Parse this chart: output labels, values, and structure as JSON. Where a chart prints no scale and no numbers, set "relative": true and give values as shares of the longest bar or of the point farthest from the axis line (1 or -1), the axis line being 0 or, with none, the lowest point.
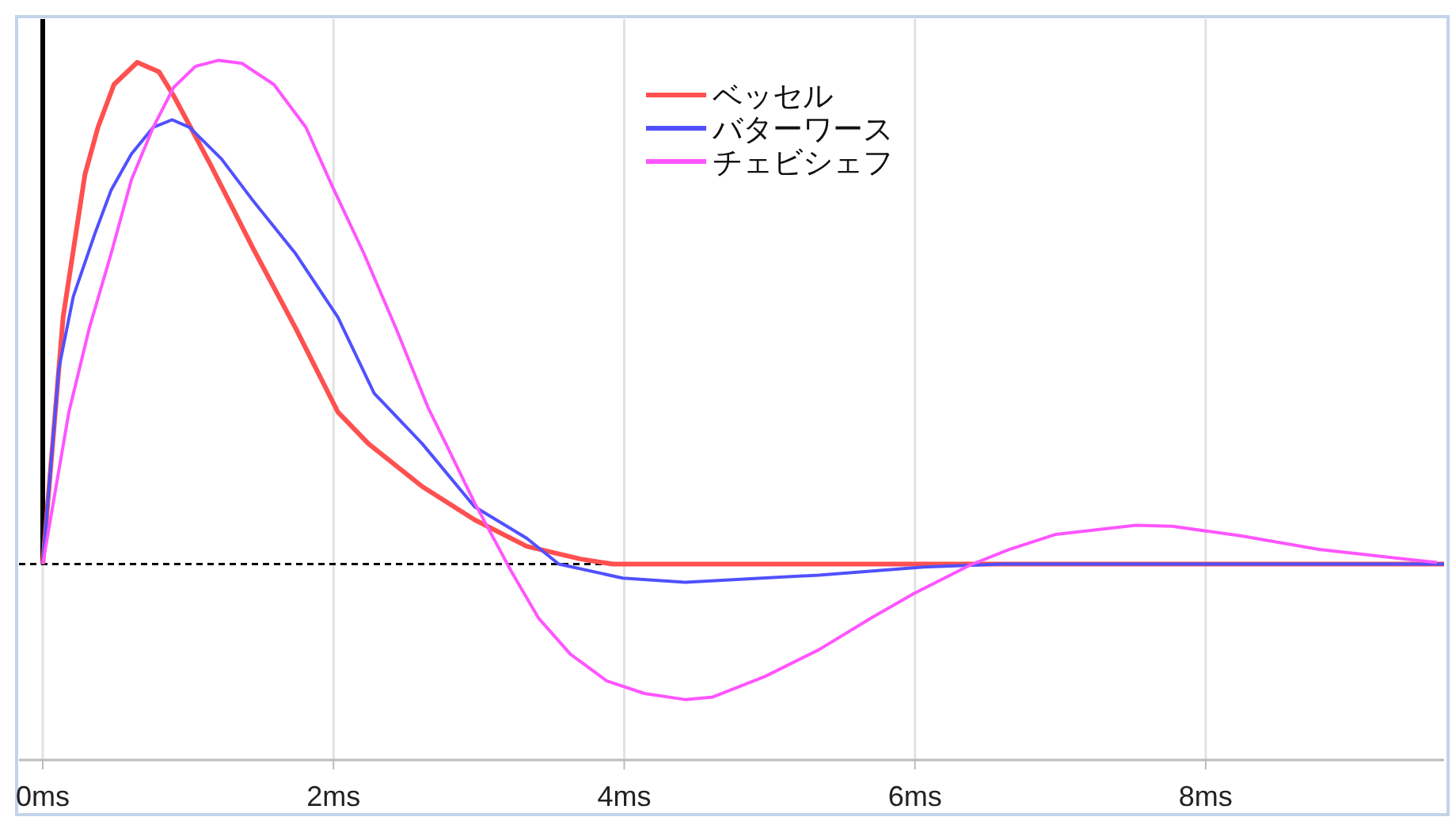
{
  "chart_data": {
    "type": "line",
    "relative": true,
    "grid": "x",
    "legend": "top",
    "marker": "none",
    "line_style": "solid",
    "xlim": [
      0,
      9.64
    ],
    "xticks": [
      {
        "value": 0,
        "label": "0ms"
      },
      {
        "value": 2,
        "label": "2ms"
      },
      {
        "value": 4,
        "label": "4ms"
      },
      {
        "value": 6,
        "label": "6ms"
      },
      {
        "value": 8,
        "label": "8ms"
      }
    ],
    "ref_lines": [
      {
        "axis": "y",
        "value": 0,
        "color": "#000000",
        "line_style": "dashed"
      },
      {
        "axis": "x",
        "value": 0,
        "color": "#000000",
        "line_style": "solid"
      }
    ],
    "series": [
      {
        "name": "ベッセル",
        "color": "#ff5050",
        "x": [
          0,
          0.14,
          0.29,
          0.38,
          0.49,
          0.65,
          0.8,
          0.9,
          1.15,
          1.45,
          1.74,
          2.03,
          2.24,
          2.61,
          2.97,
          3.33,
          3.7,
          3.92,
          9.64
        ],
        "values": [
          0,
          0.49,
          0.773,
          0.867,
          0.952,
          0.996,
          0.977,
          0.93,
          0.795,
          0.625,
          0.468,
          0.302,
          0.239,
          0.154,
          0.088,
          0.035,
          0.01,
          0,
          0
        ]
      },
      {
        "name": "バターワース",
        "color": "#5050ff",
        "x": [
          0,
          0.11,
          0.21,
          0.36,
          0.47,
          0.61,
          0.76,
          0.89,
          1.01,
          1.23,
          1.45,
          1.74,
          2.03,
          2.28,
          2.61,
          2.97,
          3.33,
          3.55,
          3.99,
          4.42,
          5.34,
          6.06,
          6.6,
          9.64
        ],
        "values": [
          0,
          0.387,
          0.531,
          0.657,
          0.742,
          0.814,
          0.867,
          0.882,
          0.867,
          0.804,
          0.72,
          0.616,
          0.49,
          0.339,
          0.239,
          0.114,
          0.051,
          0,
          -0.028,
          -0.036,
          -0.022,
          -0.006,
          0,
          0
        ]
      },
      {
        "name": "チェビシェフ",
        "color": "#ff55ff",
        "x": [
          0,
          0.18,
          0.32,
          0.47,
          0.61,
          0.76,
          0.9,
          1.05,
          1.21,
          1.37,
          1.59,
          1.81,
          1.99,
          2.21,
          2.43,
          2.65,
          2.79,
          2.97,
          3.12,
          3.22,
          3.41,
          3.63,
          3.88,
          4.14,
          4.42,
          4.61,
          4.97,
          5.34,
          5.7,
          5.99,
          6.38,
          6.64,
          6.97,
          7.52,
          7.77,
          8.24,
          8.78,
          9.59
        ],
        "values": [
          0,
          0.302,
          0.468,
          0.616,
          0.763,
          0.867,
          0.946,
          0.988,
          1,
          0.994,
          0.952,
          0.867,
          0.751,
          0.616,
          0.468,
          0.311,
          0.229,
          0.122,
          0.041,
          -0.013,
          -0.107,
          -0.179,
          -0.232,
          -0.257,
          -0.269,
          -0.264,
          -0.223,
          -0.17,
          -0.107,
          -0.059,
          -0.002,
          0.028,
          0.059,
          0.077,
          0.075,
          0.056,
          0.029,
          0.003
        ]
      }
    ]
  }
}
